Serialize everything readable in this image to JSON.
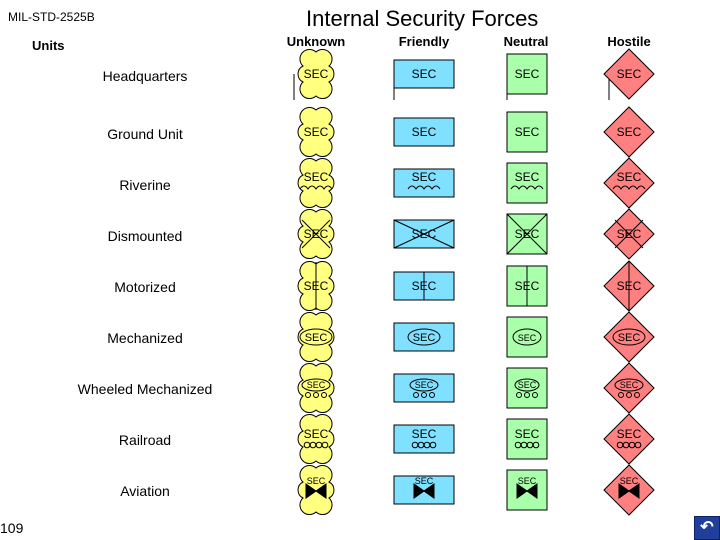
{
  "standard": "MIL-STD-2525B",
  "title": "Internal Security Forces",
  "units_label": "Units",
  "columns": [
    "Unknown",
    "Friendly",
    "Neutral",
    "Hostile"
  ],
  "rows": [
    "Headquarters",
    "Ground Unit",
    "Riverine",
    "Dismounted",
    "Motorized",
    "Mechanized",
    "Wheeled Mechanized",
    "Railroad",
    "Aviation"
  ],
  "symbol_text": "SEC",
  "page_number": "109",
  "nav_icon": "u-turn-return-icon",
  "colors": {
    "unknown": "#ffff80",
    "friendly": "#80e0ff",
    "neutral": "#aaffaa",
    "hostile": "#ff8080",
    "nav": "#1f3f9a"
  }
}
